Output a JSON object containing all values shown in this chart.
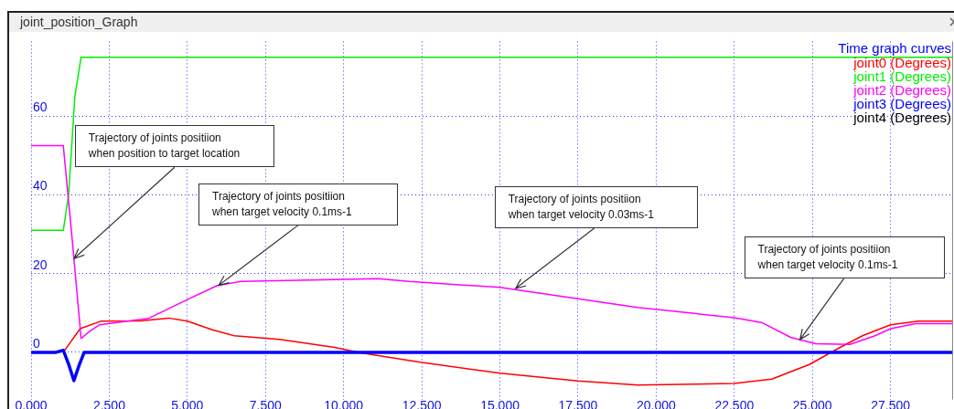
{
  "chart_data": {
    "type": "line",
    "title": "joint_position_Graph",
    "legend_title": "Time graph curves",
    "legend": "top right",
    "grid": true,
    "marker": "none",
    "line_style": "solid",
    "xlim": [
      0,
      29.5
    ],
    "ylim": [
      -12,
      79
    ],
    "xticks": [
      {
        "value": 0,
        "label": "0.000"
      },
      {
        "value": 2.5,
        "label": "2.500"
      },
      {
        "value": 5,
        "label": "5.000"
      },
      {
        "value": 7.5,
        "label": "7.500"
      },
      {
        "value": 10,
        "label": "10.000"
      },
      {
        "value": 12.5,
        "label": "12.500"
      },
      {
        "value": 15,
        "label": "15.000"
      },
      {
        "value": 17.5,
        "label": "17.500"
      },
      {
        "value": 20,
        "label": "20.000"
      },
      {
        "value": 22.5,
        "label": "22.500"
      },
      {
        "value": 25,
        "label": "25.000"
      },
      {
        "value": 27.5,
        "label": "27.500"
      }
    ],
    "yticks": [
      0,
      20,
      40,
      60
    ],
    "series": [
      {
        "name": "joint0 (Degrees)",
        "color": "#ff0000",
        "x": [
          1.03,
          1.57,
          2.23,
          3.5,
          4.4,
          5,
          5.8,
          6.5,
          7.95,
          9.66,
          10.6,
          12.5,
          15,
          17.5,
          19.4,
          21.3,
          22.5,
          23.7,
          24.9,
          25.9,
          26.6,
          27.5,
          28.4,
          29.5
        ],
        "values": [
          0,
          6,
          7.9,
          8,
          8.7,
          7.9,
          5.7,
          4.2,
          3.3,
          1.3,
          -0.2,
          -2.6,
          -5.3,
          -7.3,
          -8.3,
          -8.1,
          -7.9,
          -6.8,
          -3.1,
          1.3,
          4.2,
          7,
          7.9,
          7.9
        ]
      },
      {
        "name": "joint1 (Degrees)",
        "color": "#00ee00",
        "x": [
          0,
          1.03,
          1.2,
          1.4,
          1.6,
          29.5
        ],
        "values": [
          31,
          31,
          40,
          65,
          75,
          75
        ]
      },
      {
        "name": "joint2 (Degrees)",
        "color": "#ff00ff",
        "x": [
          0,
          1.03,
          1.3,
          1.6,
          1.9,
          2.2,
          3.75,
          5,
          5.94,
          6.7,
          9.66,
          11.1,
          12.1,
          15,
          17.5,
          19.4,
          22.5,
          23.4,
          24.3,
          25.1,
          26.2,
          27,
          27.5,
          28.3,
          29.5
        ],
        "values": [
          52.5,
          52.5,
          30,
          3.5,
          5.5,
          7,
          8.6,
          13.4,
          16.9,
          18,
          18.5,
          18.7,
          18,
          16.5,
          13.6,
          11.4,
          8.8,
          7.5,
          3.8,
          2.2,
          2,
          4.2,
          6,
          7.3,
          7.3
        ]
      },
      {
        "name": "joint3 (Degrees)",
        "color": "#0000ff",
        "x": [
          0,
          0.8,
          1.03,
          1.2,
          1.37,
          1.55,
          1.7,
          29.5
        ],
        "values": [
          0,
          0,
          0.5,
          -3,
          -7.2,
          -3,
          0,
          0
        ]
      },
      {
        "name": "joint4 (Degrees)",
        "color": "#000000"
      }
    ],
    "annotations": [
      {
        "text": "Trajectory of joints positiion when position to target location",
        "x": 1.37,
        "y": 23.8
      },
      {
        "text": "Trajectory of joints positiion when target velocity 0.1ms-1",
        "x": 6,
        "y": 17
      },
      {
        "text": "Trajectory of joints positiion when target velocity 0.03ms-1",
        "x": 15.5,
        "y": 16.2
      },
      {
        "text": "Trajectory of joints positiion when target velocity 0.1ms-1",
        "x": 24.6,
        "y": 3.2
      }
    ]
  }
}
